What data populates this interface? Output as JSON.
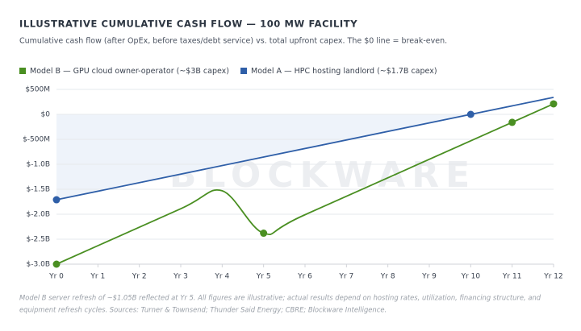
{
  "chart_data": {
    "type": "line",
    "title": "ILLUSTRATIVE CUMULATIVE CASH FLOW — 100 MW FACILITY",
    "subtitle": "Cumulative cash flow (after OpEx, before taxes/debt service) vs. total upfront capex. The $0 line = break-even.",
    "watermark": "BLOCKWARE",
    "footnote": [
      "Model B server refresh of ~$1.05B reflected at Yr 5. All figures are illustrative; actual results depend on hosting rates, utilization, financing structure, and",
      "equipment refresh cycles. Sources: Turner & Townsend; Thunder Said Energy; CBRE; Blockware Intelligence."
    ],
    "xlim": [
      0,
      12
    ],
    "xticks": [
      {
        "value": 0,
        "label": "Yr 0"
      },
      {
        "value": 1,
        "label": "Yr 1"
      },
      {
        "value": 2,
        "label": "Yr 2"
      },
      {
        "value": 3,
        "label": "Yr 3"
      },
      {
        "value": 4,
        "label": "Yr 4"
      },
      {
        "value": 5,
        "label": "Yr 5"
      },
      {
        "value": 6,
        "label": "Yr 6"
      },
      {
        "value": 7,
        "label": "Yr 7"
      },
      {
        "value": 8,
        "label": "Yr 8"
      },
      {
        "value": 9,
        "label": "Yr 9"
      },
      {
        "value": 10,
        "label": "Yr 10"
      },
      {
        "value": 11,
        "label": "Yr 11"
      },
      {
        "value": 12,
        "label": "Yr 12"
      }
    ],
    "ylim": [
      -3000,
      500
    ],
    "yticks": [
      {
        "value": 500,
        "label": "$500M"
      },
      {
        "value": 0,
        "label": "$0"
      },
      {
        "value": -500,
        "label": "$-500M"
      },
      {
        "value": -1000,
        "label": "$-1.0B"
      },
      {
        "value": -1500,
        "label": "$-1.5B"
      },
      {
        "value": -2000,
        "label": "$-2.0B"
      },
      {
        "value": -2500,
        "label": "$-2.5B"
      },
      {
        "value": -3000,
        "label": "$-3.0B"
      }
    ],
    "grid": true,
    "series": [
      {
        "name": "Model B — GPU cloud owner-operator (~$3B capex)",
        "color": "#4a8f22",
        "x": [
          0,
          3,
          4,
          5,
          6,
          11,
          12
        ],
        "values": [
          -3000,
          -1890,
          -1530,
          -2380,
          -2010,
          -160,
          210
        ],
        "markers": [
          0,
          3,
          5,
          6
        ],
        "smooth": true
      },
      {
        "name": "Model A — HPC hosting landlord (~$1.7B capex)",
        "color": "#2f5fa8",
        "x": [
          0,
          10,
          12
        ],
        "values": [
          -1710,
          0,
          340
        ],
        "markers": [
          0,
          1
        ],
        "smooth": false,
        "fill_to_zero": "#eef3fa"
      }
    ]
  }
}
